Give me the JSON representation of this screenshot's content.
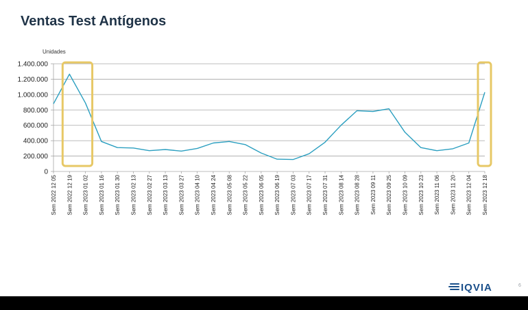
{
  "slide": {
    "title": "Ventas Test Antígenos",
    "logo_text": "IQVIA",
    "page_number": "6"
  },
  "colors": {
    "line": "#2b9fc0",
    "highlight": "#e7c866",
    "title": "#1f3347",
    "grid": "#a6a6a6",
    "logo": "#1a4f8a"
  },
  "chart_data": {
    "type": "line",
    "title": "",
    "xlabel": "",
    "ylabel": "Unidades",
    "ylim": [
      0,
      1400000
    ],
    "yticks": [
      0,
      200000,
      400000,
      600000,
      800000,
      1000000,
      1200000,
      1400000
    ],
    "ytick_labels": [
      "0",
      "200.000",
      "400.000",
      "600.000",
      "800.000",
      "1.000.000",
      "1.200.000",
      "1.400.000"
    ],
    "grid": true,
    "legend": "none",
    "categories": [
      "Sem 2022 12 05",
      "Sem 2022 12 19",
      "Sem 2023 01 02",
      "Sem 2023 01 16",
      "Sem 2023 01 30",
      "Sem 2023 02 13",
      "Sem 2023 02 27",
      "Sem 2023 03 13",
      "Sem 2023 03 27",
      "Sem 2023 04 10",
      "Sem 2023 04 24",
      "Sem 2023 05 08",
      "Sem 2023 05 22",
      "Sem 2023 06 05",
      "Sem 2023 06 19",
      "Sem 2023 07 03",
      "Sem 2023 07 17",
      "Sem 2023 07 31",
      "Sem 2023 08 14",
      "Sem 2023 08 28",
      "Sem 2023 09 11",
      "Sem 2023 09 25",
      "Sem 2023 10 09",
      "Sem 2023 10 23",
      "Sem 2023 11 06",
      "Sem 2023 11 20",
      "Sem 2023 12 04",
      "Sem 2023 12 18"
    ],
    "series": [
      {
        "values": [
          880000,
          1265000,
          890000,
          390000,
          310000,
          305000,
          270000,
          285000,
          265000,
          300000,
          370000,
          390000,
          350000,
          240000,
          160000,
          155000,
          230000,
          380000,
          600000,
          790000,
          780000,
          815000,
          510000,
          310000,
          270000,
          295000,
          370000,
          1030000
        ]
      }
    ],
    "highlighted_periods": [
      [
        "Sem 2022 12 19",
        "Sem 2023 01 02"
      ],
      [
        "Sem 2023 12 18",
        "Sem 2023 12 18"
      ]
    ]
  }
}
